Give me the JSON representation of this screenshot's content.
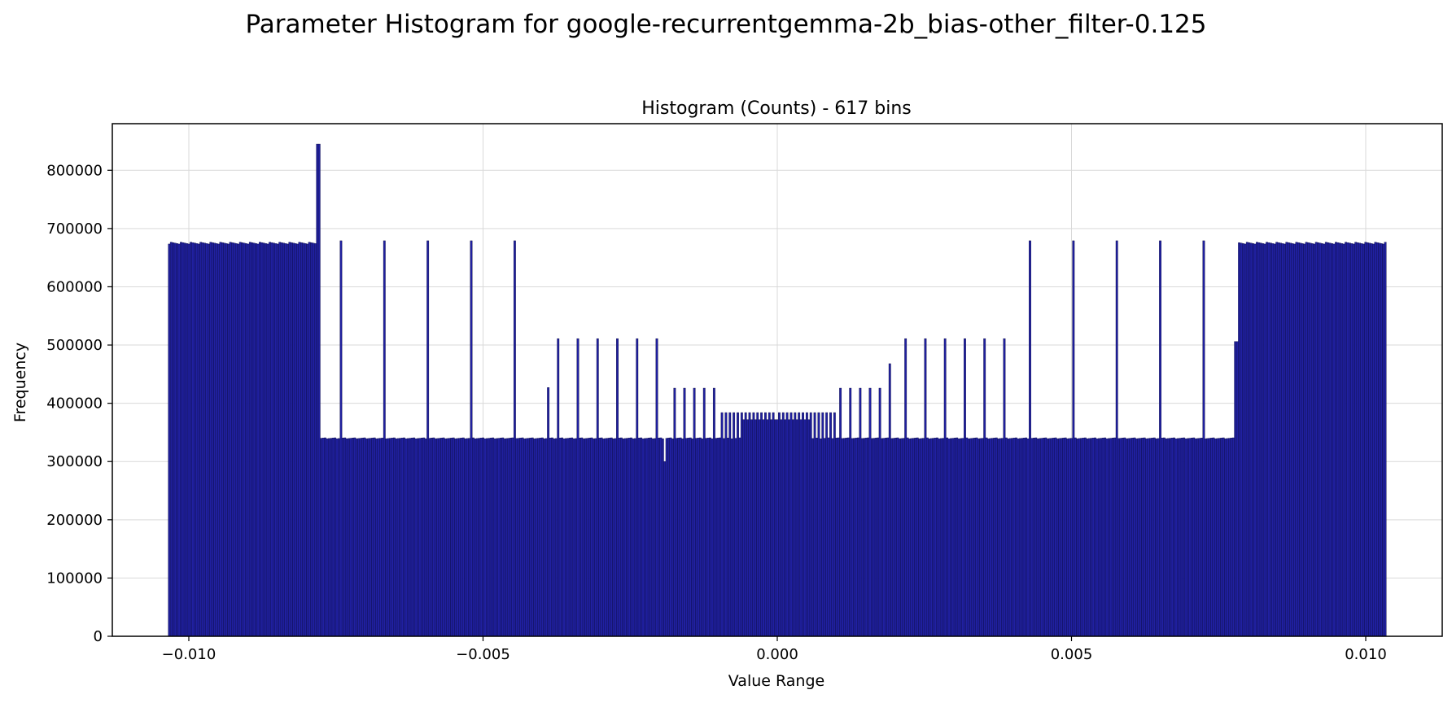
{
  "figure": {
    "suptitle": "Parameter Histogram for google-recurrentgemma-2b_bias-other_filter-0.125"
  },
  "chart_data": {
    "type": "bar",
    "title": "Histogram (Counts) - 617 bins",
    "xlabel": "Value Range",
    "ylabel": "Frequency",
    "xlim": [
      -0.0113,
      0.0113
    ],
    "ylim": [
      0,
      880000
    ],
    "xticks": [
      -0.01,
      -0.005,
      0.0,
      0.005,
      0.01
    ],
    "xtick_labels": [
      "−0.010",
      "−0.005",
      "0.000",
      "0.005",
      "0.010"
    ],
    "yticks": [
      0,
      100000,
      200000,
      300000,
      400000,
      500000,
      600000,
      700000,
      800000
    ],
    "ytick_labels": [
      "0",
      "100000",
      "200000",
      "300000",
      "400000",
      "500000",
      "600000",
      "700000",
      "800000"
    ],
    "grid": true,
    "bin_count": 617,
    "range": [
      -0.01035,
      0.01035
    ],
    "bar_color": "#2020a0",
    "edge_color": "#0a0a40",
    "segments": [
      {
        "x_start": -0.01035,
        "x_end": -0.0078,
        "base": 0,
        "tall": 675000,
        "period": 1
      },
      {
        "x_start": -0.0078,
        "x_end": -0.0039,
        "base": 340000,
        "tall": 679000,
        "period": 22
      },
      {
        "x_start": -0.0039,
        "x_end": -0.002,
        "base": 340000,
        "tall": 511000,
        "period": 10
      },
      {
        "x_start": -0.002,
        "x_end": -0.001,
        "base": 340000,
        "tall": 426000,
        "period": 5
      },
      {
        "x_start": -0.001,
        "x_end": 0.0,
        "base": 340000,
        "tall": 384000,
        "period": 2
      },
      {
        "x_start": 0.0,
        "x_end": 0.001,
        "base": 340000,
        "tall": 384000,
        "period": 2
      },
      {
        "x_start": 0.001,
        "x_end": 0.002,
        "base": 340000,
        "tall": 426000,
        "period": 5
      },
      {
        "x_start": 0.002,
        "x_end": 0.0039,
        "base": 340000,
        "tall": 511000,
        "period": 10
      },
      {
        "x_start": 0.0039,
        "x_end": 0.0078,
        "base": 340000,
        "tall": 679000,
        "period": 22
      },
      {
        "x_start": 0.0078,
        "x_end": 0.01035,
        "base": 0,
        "tall": 675000,
        "period": 1
      }
    ],
    "notable_bars": [
      {
        "x": -0.0078,
        "value": 845000
      },
      {
        "x": -0.0039,
        "value": 427000
      },
      {
        "x": -0.0019,
        "value": 300000
      },
      {
        "x": 0.0019,
        "value": 468000
      },
      {
        "x": 0.0078,
        "value": 506000
      }
    ]
  }
}
